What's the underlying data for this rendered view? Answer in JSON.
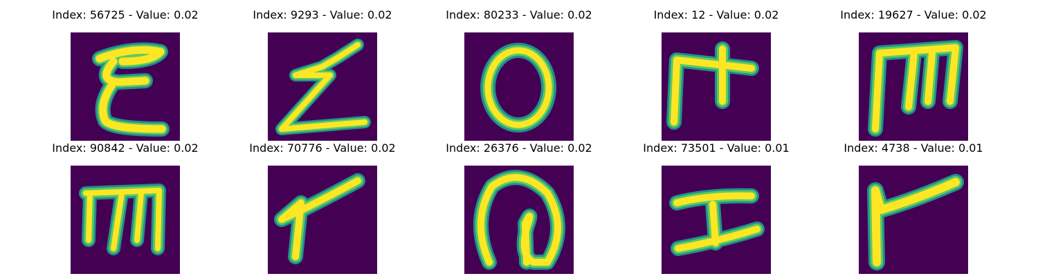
{
  "colors": {
    "background": "#440154",
    "stroke_edge": "#21908c",
    "stroke_mid": "#5ec962",
    "stroke_core": "#fde725"
  },
  "figures": [
    {
      "title": "Index: 56725 - Value: 0.02",
      "glyph": "letter-e"
    },
    {
      "title": "Index: 9293 - Value: 0.02",
      "glyph": "letter-z"
    },
    {
      "title": "Index: 80233 - Value: 0.02",
      "glyph": "letter-o"
    },
    {
      "title": "Index: 12 - Value: 0.02",
      "glyph": "letter-t"
    },
    {
      "title": "Index: 19627 - Value: 0.02",
      "glyph": "letter-m"
    },
    {
      "title": "Index: 90842 - Value: 0.02",
      "glyph": "letter-m"
    },
    {
      "title": "Index: 70776 - Value: 0.02",
      "glyph": "letter-r"
    },
    {
      "title": "Index: 26376 - Value: 0.02",
      "glyph": "letter-a"
    },
    {
      "title": "Index: 73501 - Value: 0.01",
      "glyph": "letter-i"
    },
    {
      "title": "Index: 4738 - Value: 0.01",
      "glyph": "letter-r"
    }
  ]
}
